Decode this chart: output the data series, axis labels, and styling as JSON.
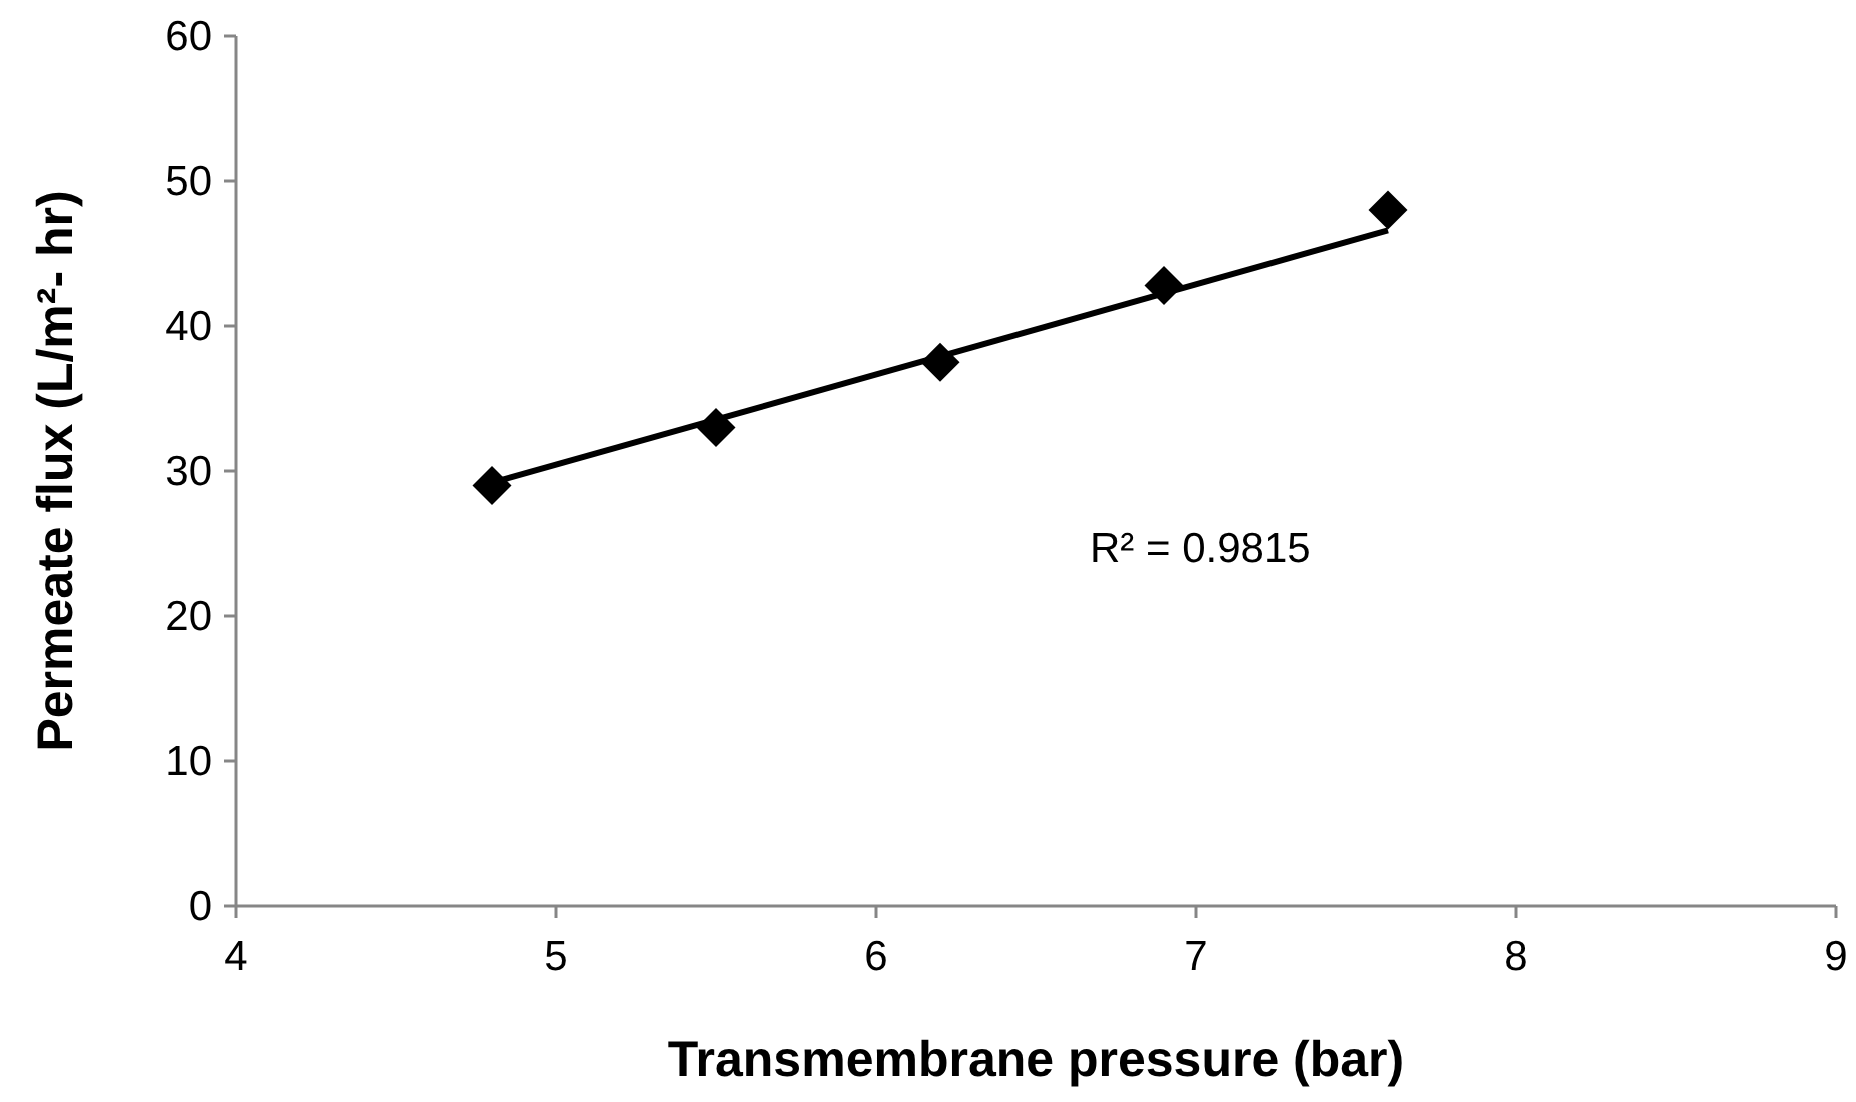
{
  "chart_data": {
    "type": "scatter",
    "xlabel": "Transmembrane pressure (bar)",
    "ylabel": "Permeate flux (L/m²- hr)",
    "xlim": [
      4,
      9
    ],
    "xticks": [
      4,
      5,
      6,
      7,
      8,
      9
    ],
    "ylim": [
      0,
      60
    ],
    "yticks": [
      0,
      10,
      20,
      30,
      40,
      50,
      60
    ],
    "marker": "diamond",
    "annotations": [
      "R² = 0.9815"
    ],
    "series": [
      {
        "color": "#000000",
        "x": [
          4.8,
          5.5,
          6.2,
          6.9,
          7.6
        ],
        "values": [
          29,
          33,
          37.5,
          42.8,
          48
        ]
      },
      {
        "type": "line",
        "color": "#000000",
        "x": [
          4.8,
          7.6
        ],
        "values": [
          29.2,
          46.6
        ],
        "marker": "none"
      }
    ]
  }
}
